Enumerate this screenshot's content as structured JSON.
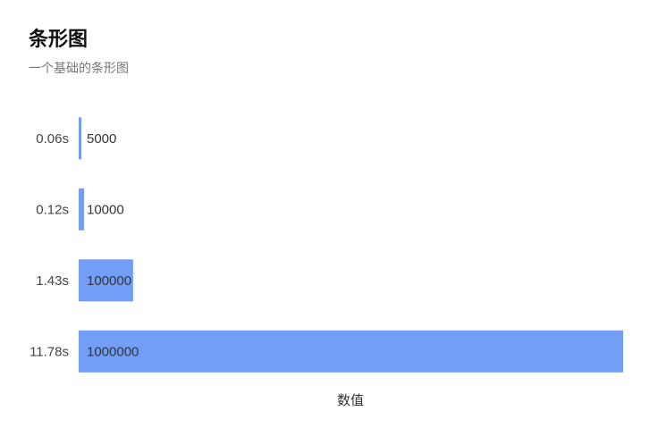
{
  "chart": {
    "title": "条形图",
    "subtitle": "一个基础的条形图"
  },
  "chart_data": {
    "type": "bar",
    "orientation": "horizontal",
    "categories": [
      "0.06s",
      "0.12s",
      "1.43s",
      "11.78s"
    ],
    "values": [
      5000,
      10000,
      100000,
      1000000
    ],
    "data_labels": [
      "5000",
      "10000",
      "100000",
      "1000000"
    ],
    "xlabel": "数值",
    "ylabel": "",
    "xlim": [
      0,
      1000000
    ],
    "grid": false,
    "bar_color": "#739ef7"
  }
}
